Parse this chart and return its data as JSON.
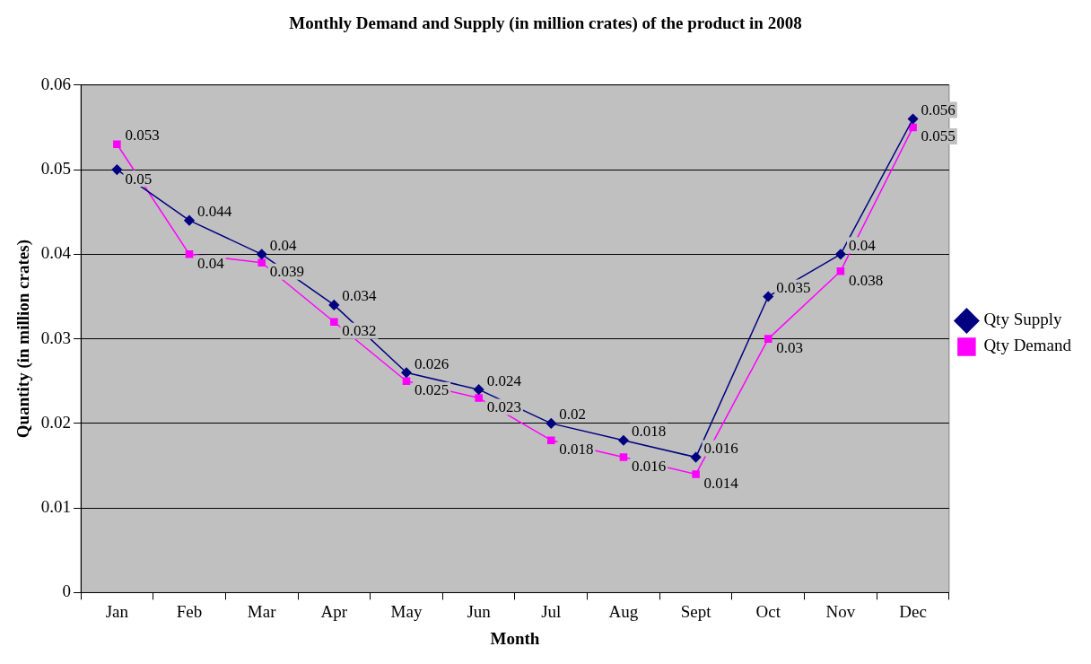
{
  "chart_data": {
    "type": "line",
    "title": "Monthly Demand and Supply (in million crates) of the product in 2008",
    "xlabel": "Month",
    "ylabel": "Quantity (in million crates)",
    "categories": [
      "Jan",
      "Feb",
      "Mar",
      "Apr",
      "May",
      "Jun",
      "Jul",
      "Aug",
      "Sept",
      "Oct",
      "Nov",
      "Dec"
    ],
    "series": [
      {
        "name": "Qty Supply",
        "color": "#000080",
        "marker": "diamond",
        "values": [
          0.05,
          0.044,
          0.04,
          0.034,
          0.026,
          0.024,
          0.02,
          0.018,
          0.016,
          0.035,
          0.04,
          0.056
        ]
      },
      {
        "name": "Qty Demand",
        "color": "#ff00ff",
        "marker": "square",
        "values": [
          0.053,
          0.04,
          0.039,
          0.032,
          0.025,
          0.023,
          0.018,
          0.016,
          0.014,
          0.03,
          0.038,
          0.055
        ]
      }
    ],
    "ylim": [
      0,
      0.06
    ],
    "yticks": [
      0,
      0.01,
      0.02,
      0.03,
      0.04,
      0.05,
      0.06
    ],
    "grid": "y",
    "legend": "right",
    "data_labels": true,
    "line_style": "solid"
  }
}
